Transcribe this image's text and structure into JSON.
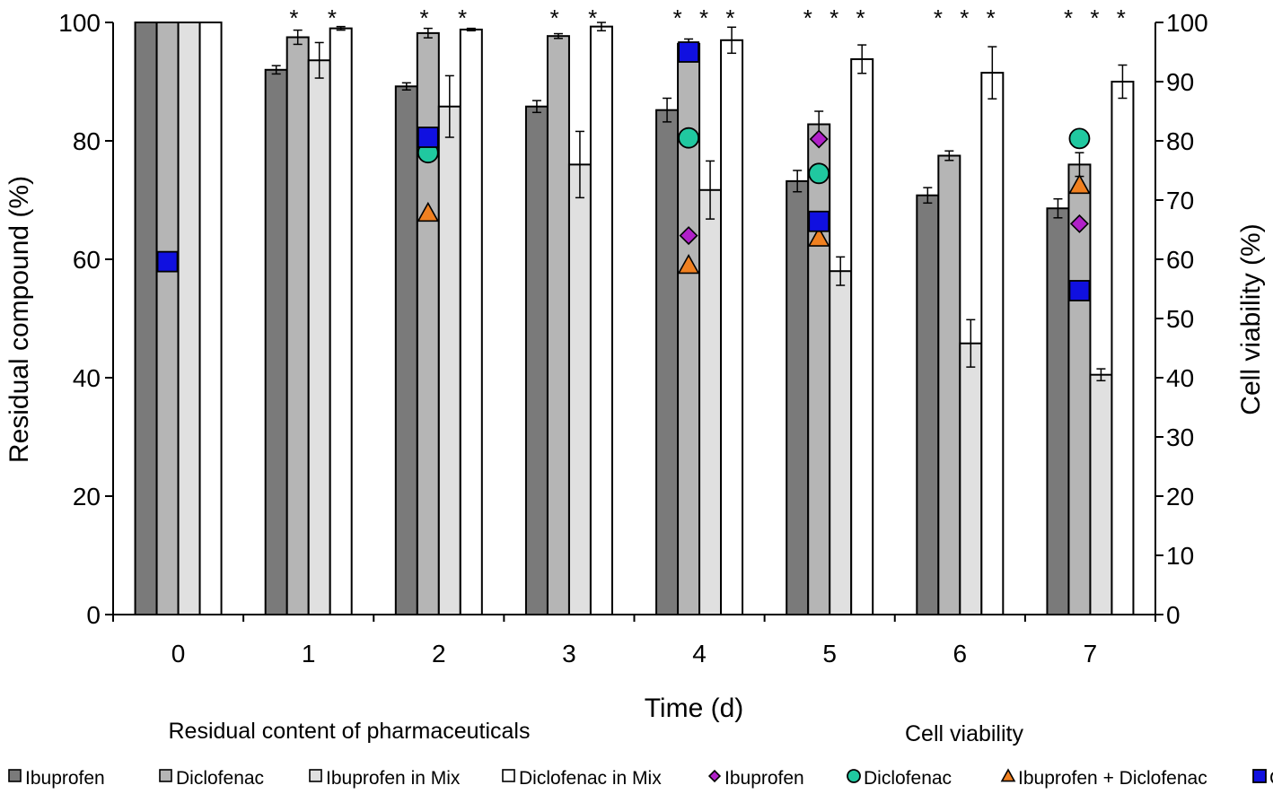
{
  "chart_data": {
    "type": "bar",
    "xlabel": "Time (d)",
    "ylabel": "Residual compound (%)",
    "y2label": "Cell viability (%)",
    "ylim": [
      0,
      100
    ],
    "y2lim": [
      0,
      100
    ],
    "yticks": [
      "0",
      "20",
      "40",
      "60",
      "80",
      "100"
    ],
    "y2ticks": [
      "0",
      "10",
      "20",
      "30",
      "40",
      "50",
      "60",
      "70",
      "80",
      "90",
      "100"
    ],
    "categories": [
      "0",
      "1",
      "2",
      "3",
      "4",
      "5",
      "6",
      "7"
    ],
    "bar_group_title": "Residual content of pharmaceuticals",
    "marker_group_title": "Cell viability",
    "bar_series": [
      {
        "name": "Ibuprofen",
        "color": "#7a7a7a",
        "values": [
          100,
          92.0,
          89.2,
          85.8,
          85.2,
          73.2,
          70.8,
          68.6
        ],
        "errors": [
          0,
          0.7,
          0.6,
          1.0,
          2.0,
          1.8,
          1.3,
          1.6
        ]
      },
      {
        "name": "Diclofenac",
        "color": "#b5b5b5",
        "values": [
          100,
          97.5,
          98.2,
          97.7,
          96.4,
          82.8,
          77.5,
          76.0
        ],
        "errors": [
          0,
          1.2,
          0.8,
          0.4,
          0.8,
          2.2,
          0.8,
          2.0
        ]
      },
      {
        "name": "Ibuprofen in Mix",
        "color": "#e0e0e0",
        "values": [
          100,
          93.6,
          85.8,
          76.0,
          71.7,
          58.0,
          45.8,
          40.5
        ],
        "errors": [
          0,
          3.0,
          5.2,
          5.6,
          4.9,
          2.4,
          4.0,
          1.0
        ]
      },
      {
        "name": "Diclofenac in Mix",
        "color": "#ffffff",
        "values": [
          100,
          99.0,
          98.8,
          99.3,
          97.0,
          93.8,
          91.5,
          90.0
        ],
        "errors": [
          0,
          0.3,
          0.2,
          0.7,
          2.2,
          2.4,
          4.4,
          2.8
        ]
      }
    ],
    "significance": [
      "",
      "*  *",
      "*  *",
      "*  *",
      "* * *",
      "* * *",
      "* * *",
      "* * *"
    ],
    "viability_series": [
      {
        "name": "Ibuprofen",
        "marker": "diamond",
        "color": "#b020c8",
        "values": [
          null,
          null,
          null,
          null,
          64,
          80.3,
          null,
          66
        ]
      },
      {
        "name": "Diclofenac",
        "marker": "circle",
        "color": "#20c8a0",
        "values": [
          null,
          null,
          78,
          null,
          80.5,
          74.5,
          null,
          80.4
        ]
      },
      {
        "name": "Ibuprofen + Diclofenac",
        "marker": "triangle",
        "color": "#f08020",
        "values": [
          null,
          null,
          67.8,
          null,
          59,
          63.6,
          null,
          72.5
        ]
      },
      {
        "name": "Control",
        "marker": "square",
        "color": "#1010e0",
        "values": [
          59.6,
          null,
          80.6,
          null,
          95,
          66.4,
          null,
          54.7
        ]
      }
    ]
  }
}
